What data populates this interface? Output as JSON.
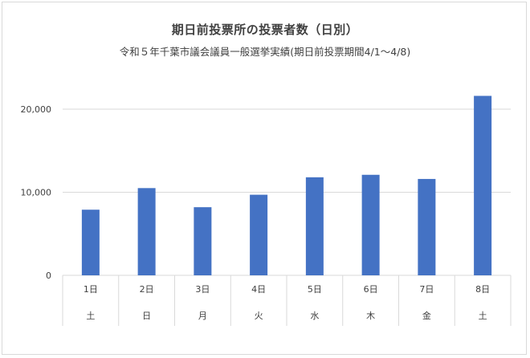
{
  "chart_data": {
    "type": "bar",
    "title": "期日前投票所の投票者数（日別）",
    "subtitle": "令和５年千葉市議会議員一般選挙実績(期日前投票期間4/1～4/8)",
    "categories": [
      "1日",
      "2日",
      "3日",
      "4日",
      "5日",
      "6日",
      "7日",
      "8日"
    ],
    "weekdays": [
      "土",
      "日",
      "月",
      "火",
      "水",
      "木",
      "金",
      "土"
    ],
    "values": [
      7900,
      10500,
      8200,
      9700,
      11800,
      12100,
      11600,
      21600
    ],
    "ylim": [
      0,
      20000
    ],
    "yticks": [
      0,
      10000,
      20000
    ],
    "ytick_labels": [
      "0",
      "10,000",
      "20,000"
    ],
    "xlabel": "",
    "ylabel": "",
    "grid": true,
    "bar_color": "#4472c4",
    "grid_color": "#d9d9d9"
  }
}
